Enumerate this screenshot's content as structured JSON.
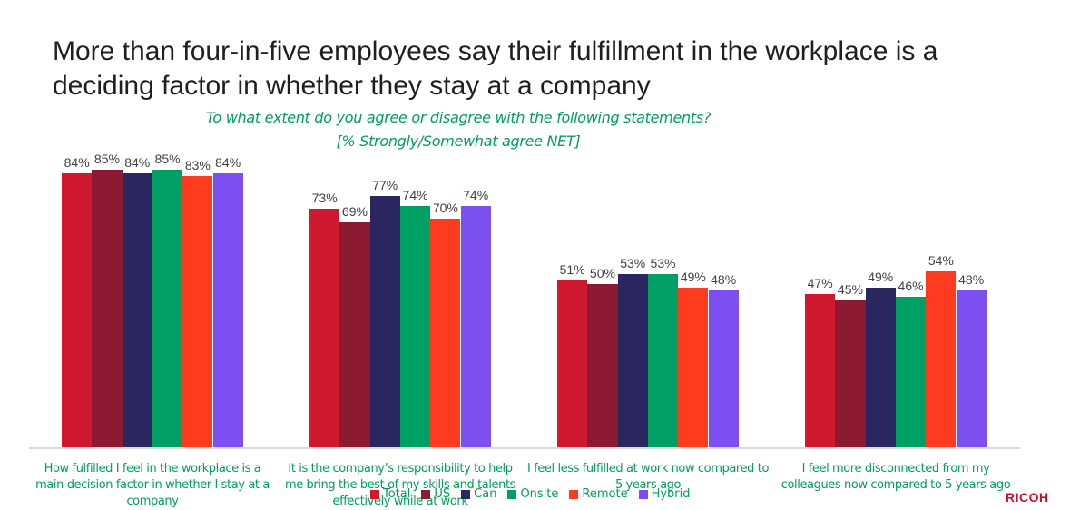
{
  "header": {
    "title": "More than four-in-five employees say their fulfillment in the workplace is a deciding factor in whether they stay at a company",
    "subtitle_line1": "To what extent do you agree or disagree with the following statements?",
    "subtitle_line2": "[% Strongly/Somewhat agree NET]"
  },
  "logo": {
    "text": "RICOH",
    "color": "#c8102e"
  },
  "chart_data": {
    "type": "bar",
    "title": "More than four-in-five employees say their fulfillment in the workplace is a deciding factor in whether they stay at a company",
    "subtitle": "To what extent do you agree or disagree with the following statements? [% Strongly/Somewhat agree NET]",
    "xlabel": "",
    "ylabel": "",
    "ylim": [
      0,
      95
    ],
    "grid": false,
    "legend_position": "bottom",
    "categories": [
      "How fulfilled I feel in the workplace is a main decision factor in whether I stay at a company",
      "It is the company’s responsibility to help me bring the best of my skills and talents effectively while at work",
      "I feel less fulfilled at work now compared to 5 years ago",
      "I feel more disconnected from my colleagues now compared to 5 years ago"
    ],
    "series": [
      {
        "name": "Total",
        "color": "#d0182f",
        "values": [
          84,
          73,
          51,
          47
        ]
      },
      {
        "name": "US",
        "color": "#8b1a32",
        "values": [
          85,
          69,
          50,
          45
        ]
      },
      {
        "name": "Can",
        "color": "#2a2660",
        "values": [
          84,
          77,
          53,
          49
        ]
      },
      {
        "name": "Onsite",
        "color": "#009f63",
        "values": [
          85,
          74,
          53,
          46
        ]
      },
      {
        "name": "Remote",
        "color": "#ff3b1f",
        "values": [
          83,
          70,
          49,
          54
        ]
      },
      {
        "name": "Hybrid",
        "color": "#7b4ff0",
        "values": [
          84,
          74,
          48,
          48
        ]
      }
    ]
  }
}
